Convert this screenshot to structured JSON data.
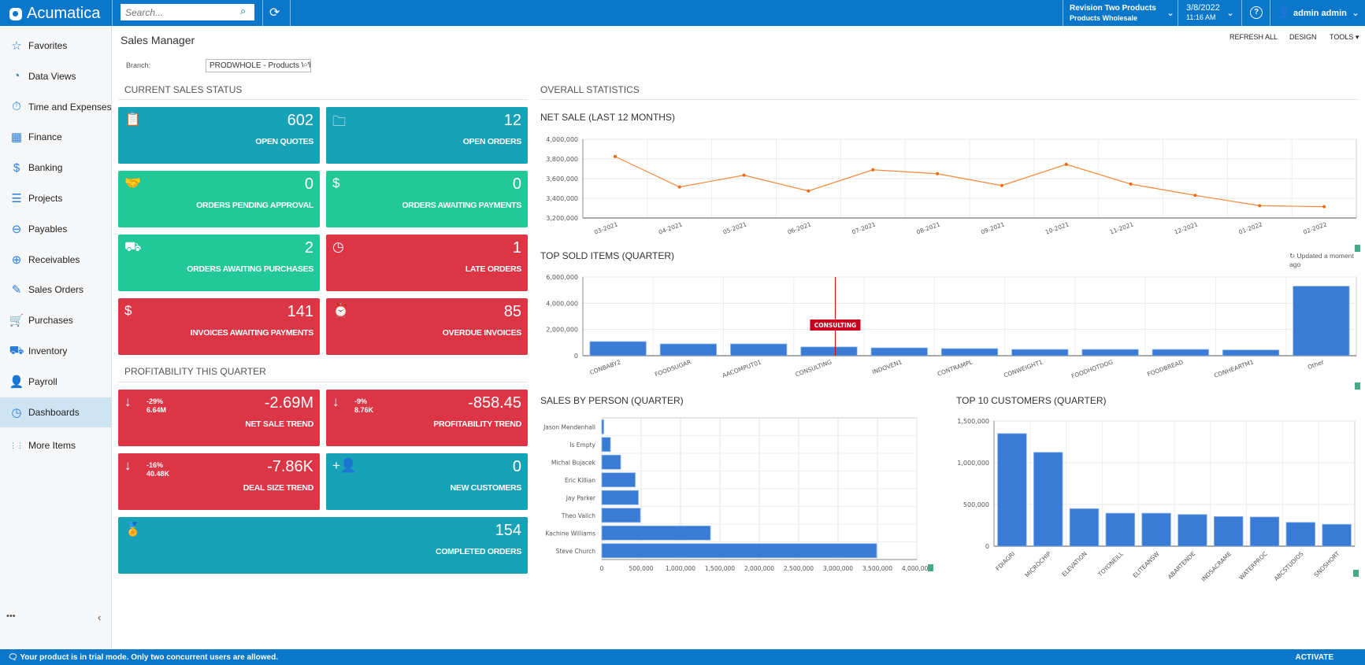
{
  "header": {
    "app_name": "Acumatica",
    "search_placeholder": "Search...",
    "company": "Revision Two Products",
    "branch": "Products Wholesale",
    "date": "3/8/2022",
    "time": "11:16 AM",
    "user": "admin admin"
  },
  "sidebar": {
    "items": [
      {
        "label": "Favorites",
        "icon": "☆"
      },
      {
        "label": "Data Views",
        "icon": "◔"
      },
      {
        "label": "Time and Expenses",
        "icon": "⏱"
      },
      {
        "label": "Finance",
        "icon": "▦"
      },
      {
        "label": "Banking",
        "icon": "$"
      },
      {
        "label": "Projects",
        "icon": "☰"
      },
      {
        "label": "Payables",
        "icon": "⊖"
      },
      {
        "label": "Receivables",
        "icon": "⊕"
      },
      {
        "label": "Sales Orders",
        "icon": "✎"
      },
      {
        "label": "Purchases",
        "icon": "🛒"
      },
      {
        "label": "Inventory",
        "icon": "⛟"
      },
      {
        "label": "Payroll",
        "icon": "👤"
      },
      {
        "label": "Dashboards",
        "icon": "◷"
      },
      {
        "label": "More Items",
        "icon": "⋮⋮"
      }
    ],
    "active": "Dashboards"
  },
  "page": {
    "title": "Sales Manager",
    "refresh_all": "REFRESH ALL",
    "design": "DESIGN",
    "tools": "TOOLS",
    "branch_label": "Branch:",
    "branch_value": "PRODWHOLE - Products Wh"
  },
  "sections": {
    "current": "CURRENT SALES STATUS",
    "profit": "PROFITABILITY THIS QUARTER",
    "overall": "OVERALL STATISTICS"
  },
  "tiles": [
    {
      "value": "602",
      "label": "OPEN QUOTES",
      "icon": "📋",
      "color": "teal"
    },
    {
      "value": "12",
      "label": "OPEN ORDERS",
      "icon": "🗀",
      "color": "teal"
    },
    {
      "value": "0",
      "label": "ORDERS PENDING APPROVAL",
      "icon": "🤝",
      "color": "green"
    },
    {
      "value": "0",
      "label": "ORDERS AWAITING PAYMENTS",
      "icon": "$",
      "color": "green"
    },
    {
      "value": "2",
      "label": "ORDERS AWAITING PURCHASES",
      "icon": "⛟",
      "color": "green"
    },
    {
      "value": "1",
      "label": "LATE ORDERS",
      "icon": "◷",
      "color": "red"
    },
    {
      "value": "141",
      "label": "INVOICES AWAITING PAYMENTS",
      "icon": "$",
      "color": "red"
    },
    {
      "value": "85",
      "label": "OVERDUE INVOICES",
      "icon": "⏰",
      "color": "red"
    }
  ],
  "profit_tiles": [
    {
      "value": "-2.69M",
      "label": "NET SALE TREND",
      "pct": "-29%",
      "prev": "6.64M",
      "icon": "↓"
    },
    {
      "value": "-858.45",
      "label": "PROFITABILITY TREND",
      "pct": "-9%",
      "prev": "8.76K",
      "icon": "↓"
    },
    {
      "value": "-7.86K",
      "label": "DEAL SIZE TREND",
      "pct": "-16%",
      "prev": "40.48K",
      "icon": "↓"
    },
    {
      "value": "0",
      "label": "NEW CUSTOMERS",
      "icon": "+👤"
    },
    {
      "value": "154",
      "label": "COMPLETED ORDERS",
      "icon": "🏅"
    }
  ],
  "updated": "Updated a moment ago",
  "footer": {
    "message": "Your product is in trial mode. Only two concurrent users are allowed.",
    "activate": "ACTIVATE"
  },
  "chart_data": [
    {
      "type": "line",
      "title": "NET SALE (LAST 12 MONTHS)",
      "categories": [
        "03-2021",
        "04-2021",
        "05-2021",
        "06-2021",
        "07-2021",
        "08-2021",
        "09-2021",
        "10-2021",
        "11-2021",
        "12-2021",
        "01-2022",
        "02-2022"
      ],
      "values": [
        3825000,
        3515000,
        3635000,
        3475000,
        3690000,
        3650000,
        3530000,
        3745000,
        3545000,
        3430000,
        3325000,
        3315000
      ],
      "ylim": [
        3200000,
        4000000
      ],
      "yticks": [
        3200000,
        3400000,
        3600000,
        3800000,
        4000000
      ],
      "color": "#f5883a"
    },
    {
      "type": "bar",
      "title": "TOP SOLD ITEMS (QUARTER)",
      "categories": [
        "CONBABY2",
        "FOODSUGAR",
        "AACOMPUT01",
        "CONSULTING",
        "INDOVEN1",
        "CONTRAMPL",
        "CONWEIGHT1",
        "FOODHOTDOG",
        "FOODBREAD",
        "CONHEARTM1",
        "Other"
      ],
      "values": [
        1080000,
        900000,
        900000,
        670000,
        600000,
        540000,
        480000,
        480000,
        480000,
        440000,
        5300000
      ],
      "ylim": [
        0,
        6000000
      ],
      "yticks": [
        0,
        2000000,
        4000000,
        6000000
      ],
      "tooltip": "CONSULTING",
      "color": "#3a7bd5"
    },
    {
      "type": "hbar",
      "title": "SALES BY PERSON (QUARTER)",
      "categories": [
        "Jason Mendenhall",
        "Is Empty",
        "Michal Bujacek",
        "Eric Killian",
        "Jay Parker",
        "Theo Valich",
        "Kachine Williams",
        "Steve Church"
      ],
      "values": [
        25000,
        110000,
        240000,
        425000,
        465000,
        490000,
        1380000,
        3490000
      ],
      "xlim": [
        0,
        4000000
      ],
      "xticks": [
        0,
        500000,
        1000000,
        1500000,
        2000000,
        2500000,
        3000000,
        3500000,
        4000000
      ],
      "color": "#3a7bd5"
    },
    {
      "type": "bar",
      "title": "TOP 10 CUSTOMERS (QUARTER)",
      "categories": [
        "FDIAGRI",
        "MICROCHIP",
        "ELEVATION",
        "TOYONEILL",
        "ELITEANSW",
        "ABARTENDE",
        "INDSACRAME",
        "WATERPROC",
        "ABCSTUDIOS",
        "SNOSHORT"
      ],
      "values": [
        1350000,
        1125000,
        450000,
        395000,
        395000,
        380000,
        355000,
        350000,
        285000,
        262000
      ],
      "ylim": [
        0,
        1500000
      ],
      "yticks": [
        0,
        500000,
        1000000,
        1500000
      ],
      "color": "#3a7bd5"
    }
  ]
}
